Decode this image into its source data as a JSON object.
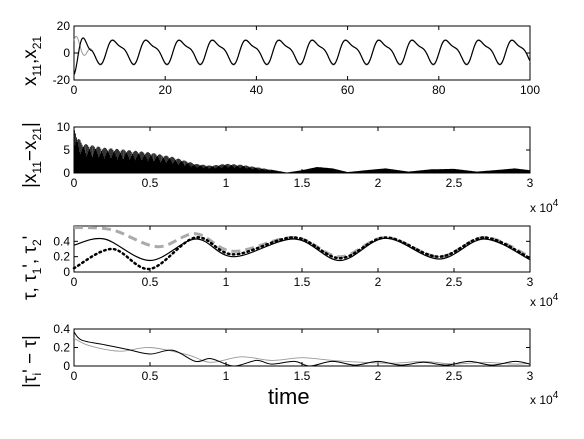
{
  "chart_data": [
    {
      "type": "line",
      "ylabel": "x11,x21",
      "ylabel_main": "x",
      "ylabel_sub1": "11",
      "ylabel_sep": ",x",
      "ylabel_sub2": "21",
      "xlim": [
        0,
        100
      ],
      "ylim": [
        -20,
        20
      ],
      "xticks": [
        "0",
        "20",
        "40",
        "60",
        "80",
        "100"
      ],
      "yticks": [
        "-20",
        "0",
        "20"
      ],
      "series": [
        {
          "color": "#000000",
          "period": 7.3,
          "amplitude": 10.5,
          "offset": 1.5
        },
        {
          "color": "#999999",
          "period": 7.3,
          "amplitude": 11,
          "offset": 1.5
        }
      ]
    },
    {
      "type": "area",
      "ylabel": "|x11−x21|",
      "ylabel_pre": "|x",
      "ylabel_sub1": "11",
      "ylabel_mid": "−x",
      "ylabel_sub2": "21",
      "ylabel_post": "|",
      "xlim": [
        0,
        3
      ],
      "ylim": [
        0,
        10
      ],
      "xticks": [
        "0",
        "0.5",
        "1",
        "1.5",
        "2",
        "2.5",
        "3"
      ],
      "yticks": [
        "0",
        "5",
        "10"
      ],
      "x_multiplier": "x 10",
      "x_multiplier_exp": "4",
      "envelope": {
        "x": [
          0,
          0.05,
          0.2,
          0.3,
          0.5,
          0.65,
          0.8,
          0.9,
          1.0,
          1.1,
          1.25,
          1.4,
          1.5,
          1.6,
          1.7,
          1.8,
          1.95,
          2.05,
          2.2,
          2.35,
          2.5,
          2.65,
          2.8,
          2.9,
          3.0
        ],
        "y": [
          9.5,
          6.5,
          5.5,
          5.2,
          4.5,
          3.5,
          2.0,
          1.6,
          2.0,
          1.8,
          1.0,
          0.1,
          0.6,
          1.3,
          1.0,
          0.2,
          0.7,
          1.0,
          0.3,
          0.8,
          0.9,
          0.3,
          0.7,
          1.0,
          0.6
        ]
      }
    },
    {
      "type": "line",
      "ylabel": "τ, τ1', τ2'",
      "ylabel_t": "τ, τ",
      "ylabel_sub1": "1",
      "ylabel_mid": "', τ",
      "ylabel_sub2": "2",
      "ylabel_post": "'",
      "xlim": [
        0,
        3
      ],
      "ylim": [
        0,
        0.6
      ],
      "xticks": [
        "0",
        "0.5",
        "1",
        "1.5",
        "2",
        "2.5",
        "3"
      ],
      "yticks": [
        "0",
        "0.2",
        "0.4"
      ],
      "x_multiplier": "x 10",
      "x_multiplier_exp": "4",
      "series": [
        {
          "style": "solid",
          "color": "#000000",
          "x": [
            0,
            0.2,
            0.5,
            0.8,
            1.05,
            1.45,
            1.75,
            2.05,
            2.4,
            2.7,
            3.0
          ],
          "y": [
            0.35,
            0.43,
            0.15,
            0.43,
            0.2,
            0.43,
            0.15,
            0.44,
            0.17,
            0.43,
            0.16
          ]
        },
        {
          "style": "dashed",
          "color": "#aaaaaa",
          "x": [
            0,
            0.25,
            0.55,
            0.8,
            1.05,
            1.45,
            1.75,
            2.05,
            2.4,
            2.7,
            3.0
          ],
          "y": [
            0.58,
            0.55,
            0.33,
            0.5,
            0.27,
            0.45,
            0.2,
            0.45,
            0.2,
            0.45,
            0.2
          ]
        },
        {
          "style": "dotted",
          "color": "#000000",
          "x": [
            0,
            0.25,
            0.5,
            0.8,
            1.05,
            1.45,
            1.75,
            2.05,
            2.4,
            2.7,
            3.0
          ],
          "y": [
            0.05,
            0.3,
            0.04,
            0.45,
            0.23,
            0.45,
            0.18,
            0.45,
            0.2,
            0.45,
            0.18
          ]
        }
      ]
    },
    {
      "type": "line",
      "ylabel": "|τi' − τ|",
      "ylabel_pre": "|τ",
      "ylabel_sub": "i",
      "ylabel_post": "' − τ|",
      "xlim": [
        0,
        3
      ],
      "ylim": [
        0,
        0.4
      ],
      "xticks": [
        "0",
        "0.5",
        "1",
        "1.5",
        "2",
        "2.5",
        "3"
      ],
      "yticks": [
        "0",
        "0.2",
        "0.4"
      ],
      "xlabel": "time",
      "x_multiplier": "x 10",
      "x_multiplier_exp": "4",
      "series": [
        {
          "color": "#000000",
          "x": [
            0,
            0.05,
            0.2,
            0.35,
            0.5,
            0.65,
            0.8,
            0.9,
            1.05,
            1.2,
            1.3,
            1.45,
            1.55,
            1.7,
            1.85,
            2.0,
            2.15,
            2.3,
            2.45,
            2.6,
            2.75,
            2.9,
            3.0
          ],
          "y": [
            0.37,
            0.28,
            0.23,
            0.18,
            0.13,
            0.17,
            0.05,
            0.08,
            0.0,
            0.06,
            0.02,
            0.05,
            0.0,
            0.05,
            0.01,
            0.05,
            0.01,
            0.04,
            0.01,
            0.05,
            0.01,
            0.05,
            0.02
          ]
        },
        {
          "color": "#999999",
          "x": [
            0,
            0.1,
            0.3,
            0.5,
            0.75,
            0.9,
            1.1,
            1.3,
            1.5,
            1.7,
            1.9,
            2.1,
            2.3,
            2.5,
            2.7,
            2.9,
            3.0
          ],
          "y": [
            0.3,
            0.22,
            0.16,
            0.2,
            0.12,
            0.04,
            0.1,
            0.06,
            0.09,
            0.06,
            0.04,
            0.03,
            0.05,
            0.02,
            0.04,
            0.02,
            0.03
          ]
        }
      ]
    }
  ]
}
